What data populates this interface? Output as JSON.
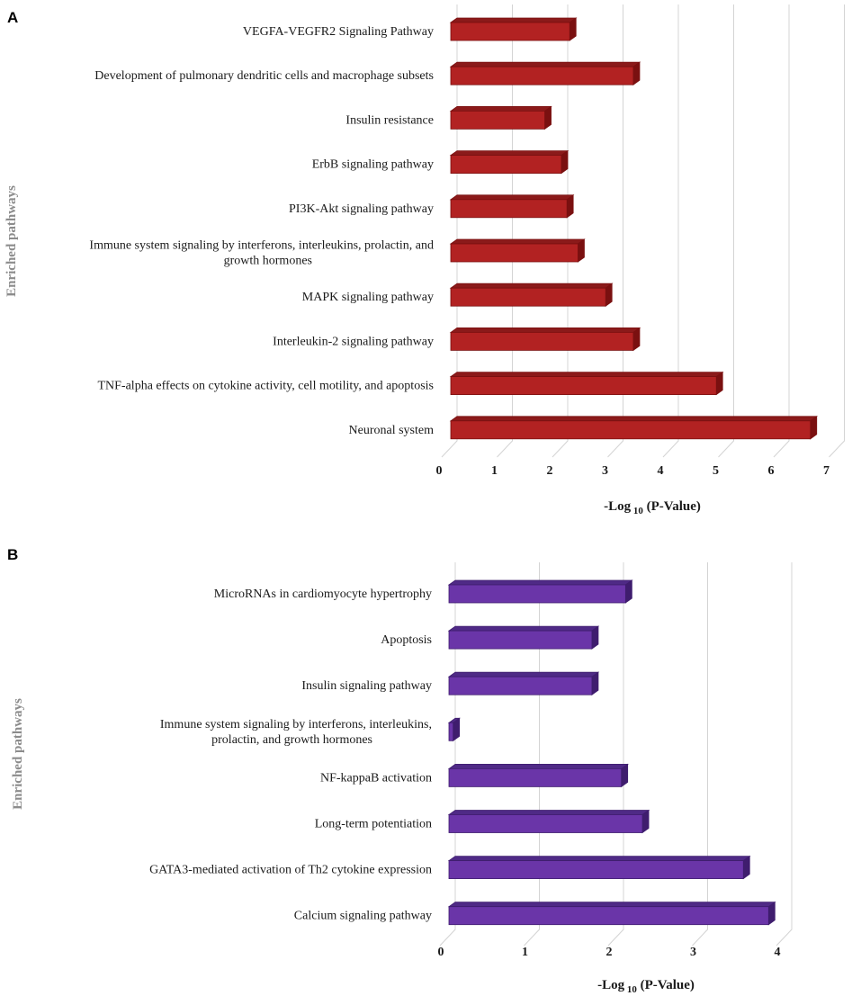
{
  "chart_data": [
    {
      "panel": "A",
      "type": "bar",
      "orientation": "horizontal",
      "title": "",
      "categories": [
        "VEGFA-VEGFR2 Signaling Pathway",
        "Development of pulmonary dendritic cells and macrophage subsets",
        "Insulin resistance",
        "ErbB signaling pathway",
        "PI3K-Akt signaling pathway",
        [
          "Immune system signaling by interferons, interleukins, prolactin, and",
          "growth hormones"
        ],
        "MAPK signaling pathway",
        "Interleukin-2 signaling pathway",
        "TNF-alpha effects on cytokine activity, cell motility, and apoptosis",
        "Neuronal system"
      ],
      "values": [
        2.15,
        3.3,
        1.7,
        2.0,
        2.1,
        2.3,
        2.8,
        3.3,
        4.8,
        6.5
      ],
      "xlim": [
        0,
        7
      ],
      "ticks": [
        "0",
        "1",
        "2",
        "3",
        "4",
        "5",
        "6",
        "7"
      ],
      "xlabel_main": "-Log",
      "xlabel_sub": "10",
      "xlabel_tail": " (P-Value)",
      "ylabel": "Enriched pathways",
      "bar_color": "#b22222",
      "bar_side_color": "#7a1010",
      "bar_top_color": "#8b1a1a"
    },
    {
      "panel": "B",
      "type": "bar",
      "orientation": "horizontal",
      "title": "",
      "categories": [
        "MicroRNAs in cardiomyocyte hypertrophy",
        "Apoptosis",
        "Insulin signaling pathway",
        [
          "Immune system signaling by interferons, interleukins,",
          "prolactin, and growth hormones"
        ],
        "NF-kappaB activation",
        "Long-term potentiation",
        "GATA3-mediated activation of Th2 cytokine expression",
        "Calcium signaling pathway"
      ],
      "values": [
        2.1,
        1.7,
        1.7,
        0.05,
        2.05,
        2.3,
        3.5,
        3.8
      ],
      "xlim": [
        0,
        4
      ],
      "ticks": [
        "0",
        "1",
        "2",
        "3",
        "4"
      ],
      "xlabel_main": "-Log",
      "xlabel_sub": "10",
      "xlabel_tail": " (P-Value)",
      "ylabel": "Enriched pathways",
      "bar_color": "#6a35a8",
      "bar_side_color": "#3f1d6e",
      "bar_top_color": "#4f2a86"
    }
  ]
}
